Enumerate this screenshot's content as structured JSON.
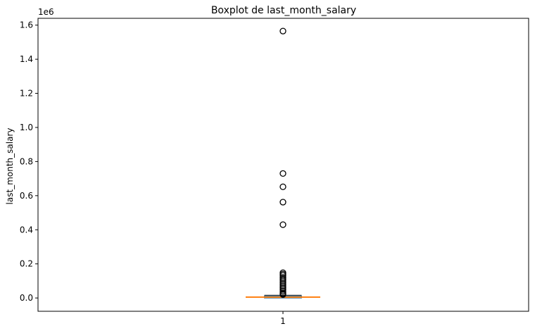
{
  "chart_data": {
    "type": "box",
    "title": "Boxplot de last_month_salary",
    "xlabel": "",
    "ylabel": "last_month_salary",
    "offset_label": "1e6",
    "x_categories": [
      "1"
    ],
    "y_ticks": [
      0.0,
      0.2,
      0.4,
      0.6,
      0.8,
      1.0,
      1.2,
      1.4,
      1.6
    ],
    "y_tick_labels": [
      "0.0",
      "0.2",
      "0.4",
      "0.6",
      "0.8",
      "1.0",
      "1.2",
      "1.4",
      "1.6"
    ],
    "ylim": [
      -0.078,
      1.64
    ],
    "y_scale_factor": 1000000,
    "box": {
      "whisker_low": 0.0,
      "q1": 0.0005,
      "median": 0.005,
      "q3": 0.011,
      "whisker_high": 0.016
    },
    "outliers": [
      1.565,
      0.73,
      0.652,
      0.562,
      0.43,
      0.148,
      0.14,
      0.132,
      0.12,
      0.11,
      0.1,
      0.09,
      0.08,
      0.07,
      0.06,
      0.05,
      0.04,
      0.03,
      0.025,
      0.02
    ],
    "colors": {
      "box": "#1f77b4",
      "median": "#ff7f0e",
      "flier": "#000000"
    },
    "grid": false
  }
}
